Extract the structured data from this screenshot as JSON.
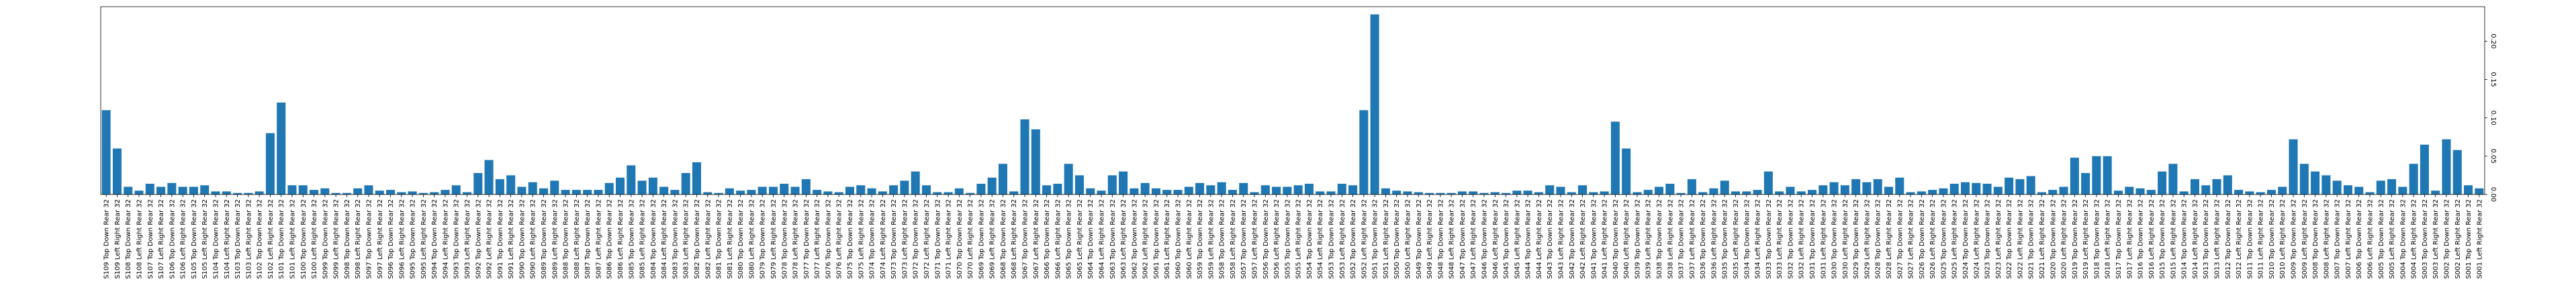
{
  "chart_data": {
    "type": "bar",
    "color": "#1f77b4",
    "categories": [
      "S109 Top Down Rear 32",
      "S109 Left Right Rear 32",
      "S108 Top Down Rear 32",
      "S108 Left Right Rear 32",
      "S107 Top Down Rear 32",
      "S107 Left Right Rear 32",
      "S106 Top Down Rear 32",
      "S106 Left Right Rear 32",
      "S105 Top Down Rear 32",
      "S105 Left Right Rear 32",
      "S104 Top Down Rear 32",
      "S104 Left Right Rear 32",
      "S103 Top Down Rear 32",
      "S103 Left Right Rear 32",
      "S102 Top Down Rear 32",
      "S102 Left Right Rear 32",
      "S101 Top Down Rear 32",
      "S101 Left Right Rear 32",
      "S100 Top Down Rear 32",
      "S100 Left Right Rear 32",
      "S099 Top Down Rear 32",
      "S099 Left Right Rear 32",
      "S098 Top Down Rear 32",
      "S098 Left Right Rear 32",
      "S097 Top Down Rear 32",
      "S097 Left Right Rear 32",
      "S096 Top Down Rear 32",
      "S096 Left Right Rear 32",
      "S095 Top Down Rear 32",
      "S095 Left Right Rear 32",
      "S094 Top Down Rear 32",
      "S094 Left Right Rear 32",
      "S093 Top Down Rear 32",
      "S093 Left Right Rear 32",
      "S092 Top Down Rear 32",
      "S092 Left Right Rear 32",
      "S091 Top Down Rear 32",
      "S091 Left Right Rear 32",
      "S090 Top Down Rear 32",
      "S090 Left Right Rear 32",
      "S089 Top Down Rear 32",
      "S089 Left Right Rear 32",
      "S088 Top Down Rear 32",
      "S088 Left Right Rear 32",
      "S087 Top Down Rear 32",
      "S087 Left Right Rear 32",
      "S086 Top Down Rear 32",
      "S086 Left Right Rear 32",
      "S085 Top Down Rear 32",
      "S085 Left Right Rear 32",
      "S084 Top Down Rear 32",
      "S084 Left Right Rear 32",
      "S083 Top Down Rear 32",
      "S083 Left Right Rear 32",
      "S082 Top Down Rear 32",
      "S082 Left Right Rear 32",
      "S081 Top Down Rear 32",
      "S081 Left Right Rear 32",
      "S080 Top Down Rear 32",
      "S080 Left Right Rear 32",
      "S079 Top Down Rear 32",
      "S079 Left Right Rear 32",
      "S078 Top Down Rear 32",
      "S078 Left Right Rear 32",
      "S077 Top Down Rear 32",
      "S077 Left Right Rear 32",
      "S076 Top Down Rear 32",
      "S076 Left Right Rear 32",
      "S075 Top Down Rear 32",
      "S075 Left Right Rear 32",
      "S074 Top Down Rear 32",
      "S074 Left Right Rear 32",
      "S073 Top Down Rear 32",
      "S073 Left Right Rear 32",
      "S072 Top Down Rear 32",
      "S072 Left Right Rear 32",
      "S071 Top Down Rear 32",
      "S071 Left Right Rear 32",
      "S070 Top Down Rear 32",
      "S070 Left Right Rear 32",
      "S069 Top Down Rear 32",
      "S069 Left Right Rear 32",
      "S068 Top Down Rear 32",
      "S068 Left Right Rear 32",
      "S067 Top Down Rear 32",
      "S067 Left Right Rear 32",
      "S066 Top Down Rear 32",
      "S066 Left Right Rear 32",
      "S065 Top Down Rear 32",
      "S065 Left Right Rear 32",
      "S064 Top Down Rear 32",
      "S064 Left Right Rear 32",
      "S063 Top Down Rear 32",
      "S063 Left Right Rear 32",
      "S062 Top Down Rear 32",
      "S062 Left Right Rear 32",
      "S061 Top Down Rear 32",
      "S061 Left Right Rear 32",
      "S060 Top Down Rear 32",
      "S060 Left Right Rear 32",
      "S059 Top Down Rear 32",
      "S059 Left Right Rear 32",
      "S058 Top Down Rear 32",
      "S058 Left Right Rear 32",
      "S057 Top Down Rear 32",
      "S057 Left Right Rear 32",
      "S056 Top Down Rear 32",
      "S056 Left Right Rear 32",
      "S055 Top Down Rear 32",
      "S055 Left Right Rear 32",
      "S054 Top Down Rear 32",
      "S054 Left Right Rear 32",
      "S053 Top Down Rear 32",
      "S053 Left Right Rear 32",
      "S052 Top Down Rear 32",
      "S052 Left Right Rear 32",
      "S051 Top Down Rear 32",
      "S051 Left Right Rear 32",
      "S050 Top Down Rear 32",
      "S050 Left Right Rear 32",
      "S049 Top Down Rear 32",
      "S049 Left Right Rear 32",
      "S048 Top Down Rear 32",
      "S048 Left Right Rear 32",
      "S047 Top Down Rear 32",
      "S047 Left Right Rear 32",
      "S046 Top Down Rear 32",
      "S046 Left Right Rear 32",
      "S045 Top Down Rear 32",
      "S045 Left Right Rear 32",
      "S044 Top Down Rear 32",
      "S044 Left Right Rear 32",
      "S043 Top Down Rear 32",
      "S043 Left Right Rear 32",
      "S042 Top Down Rear 32",
      "S042 Left Right Rear 32",
      "S041 Top Down Rear 32",
      "S041 Left Right Rear 32",
      "S040 Top Down Rear 32",
      "S040 Left Right Rear 32",
      "S039 Top Down Rear 32",
      "S039 Left Right Rear 32",
      "S038 Top Down Rear 32",
      "S038 Left Right Rear 32",
      "S037 Top Down Rear 32",
      "S037 Left Right Rear 32",
      "S036 Top Down Rear 32",
      "S036 Left Right Rear 32",
      "S035 Top Down Rear 32",
      "S035 Left Right Rear 32",
      "S034 Top Down Rear 32",
      "S034 Left Right Rear 32",
      "S033 Top Down Rear 32",
      "S033 Left Right Rear 32",
      "S032 Top Down Rear 32",
      "S032 Left Right Rear 32",
      "S031 Top Down Rear 32",
      "S031 Left Right Rear 32",
      "S030 Top Down Rear 32",
      "S030 Left Right Rear 32",
      "S029 Top Down Rear 32",
      "S029 Left Right Rear 32",
      "S028 Top Down Rear 32",
      "S028 Left Right Rear 32",
      "S027 Top Down Rear 32",
      "S027 Left Right Rear 32",
      "S026 Top Down Rear 32",
      "S026 Left Right Rear 32",
      "S025 Top Down Rear 32",
      "S025 Left Right Rear 32",
      "S024 Top Down Rear 32",
      "S024 Left Right Rear 32",
      "S023 Top Down Rear 32",
      "S023 Left Right Rear 32",
      "S022 Top Down Rear 32",
      "S022 Left Right Rear 32",
      "S021 Top Down Rear 32",
      "S021 Left Right Rear 32",
      "S020 Top Down Rear 32",
      "S020 Left Right Rear 32",
      "S019 Top Down Rear 32",
      "S019 Left Right Rear 32",
      "S018 Top Down Rear 32",
      "S018 Left Right Rear 32",
      "S017 Top Down Rear 32",
      "S017 Left Right Rear 32",
      "S016 Top Down Rear 32",
      "S016 Left Right Rear 32",
      "S015 Top Down Rear 32",
      "S015 Left Right Rear 32",
      "S014 Top Down Rear 32",
      "S014 Left Right Rear 32",
      "S013 Top Down Rear 32",
      "S013 Left Right Rear 32",
      "S012 Top Down Rear 32",
      "S012 Left Right Rear 32",
      "S011 Top Down Rear 32",
      "S011 Left Right Rear 32",
      "S010 Top Down Rear 32",
      "S010 Left Right Rear 32",
      "S009 Top Down Rear 32",
      "S009 Left Right Rear 32",
      "S008 Top Down Rear 32",
      "S008 Left Right Rear 32",
      "S007 Top Down Rear 32",
      "S007 Left Right Rear 32",
      "S006 Top Down Rear 32",
      "S006 Left Right Rear 32",
      "S005 Top Down Rear 32",
      "S005 Left Right Rear 32",
      "S004 Top Down Rear 32",
      "S004 Left Right Rear 32",
      "S003 Top Down Rear 32",
      "S003 Left Right Rear 32",
      "S002 Top Down Rear 32",
      "S002 Left Right Rear 32",
      "S001 Top Down Rear 32",
      "S001 Left Right Rear 32"
    ],
    "values": [
      0.11,
      0.06,
      0.01,
      0.005,
      0.014,
      0.01,
      0.015,
      0.01,
      0.01,
      0.012,
      0.004,
      0.004,
      0.002,
      0.002,
      0.004,
      0.08,
      0.12,
      0.012,
      0.012,
      0.006,
      0.008,
      0.002,
      0.002,
      0.008,
      0.012,
      0.005,
      0.006,
      0.003,
      0.004,
      0.002,
      0.003,
      0.006,
      0.012,
      0.003,
      0.028,
      0.045,
      0.02,
      0.025,
      0.01,
      0.016,
      0.008,
      0.018,
      0.006,
      0.006,
      0.006,
      0.006,
      0.015,
      0.022,
      0.038,
      0.018,
      0.022,
      0.01,
      0.006,
      0.028,
      0.042,
      0.003,
      0.002,
      0.008,
      0.005,
      0.006,
      0.01,
      0.01,
      0.014,
      0.01,
      0.02,
      0.006,
      0.004,
      0.003,
      0.01,
      0.012,
      0.008,
      0.004,
      0.012,
      0.018,
      0.03,
      0.012,
      0.003,
      0.003,
      0.008,
      0.002,
      0.014,
      0.022,
      0.04,
      0.004,
      0.098,
      0.085,
      0.012,
      0.014,
      0.04,
      0.025,
      0.008,
      0.005,
      0.025,
      0.03,
      0.008,
      0.015,
      0.008,
      0.006,
      0.006,
      0.01,
      0.015,
      0.012,
      0.016,
      0.006,
      0.015,
      0.003,
      0.012,
      0.01,
      0.01,
      0.012,
      0.014,
      0.004,
      0.004,
      0.014,
      0.012,
      0.11,
      0.235,
      0.008,
      0.005,
      0.004,
      0.003,
      0.002,
      0.002,
      0.002,
      0.004,
      0.004,
      0.002,
      0.003,
      0.002,
      0.005,
      0.005,
      0.003,
      0.012,
      0.01,
      0.003,
      0.012,
      0.003,
      0.004,
      0.095,
      0.06,
      0.003,
      0.006,
      0.01,
      0.014,
      0.002,
      0.02,
      0.003,
      0.008,
      0.018,
      0.004,
      0.004,
      0.006,
      0.03,
      0.004,
      0.01,
      0.004,
      0.006,
      0.012,
      0.016,
      0.012,
      0.02,
      0.016,
      0.02,
      0.01,
      0.022,
      0.003,
      0.004,
      0.006,
      0.008,
      0.014,
      0.016,
      0.015,
      0.014,
      0.01,
      0.022,
      0.02,
      0.024,
      0.003,
      0.006,
      0.01,
      0.048,
      0.028,
      0.05,
      0.05,
      0.005,
      0.01,
      0.008,
      0.006,
      0.03,
      0.04,
      0.004,
      0.02,
      0.012,
      0.02,
      0.025,
      0.006,
      0.004,
      0.003,
      0.006,
      0.01,
      0.072,
      0.04,
      0.03,
      0.025,
      0.018,
      0.012,
      0.01,
      0.003,
      0.018,
      0.02,
      0.01,
      0.04,
      0.065,
      0.005,
      0.072,
      0.058,
      0.012,
      0.008
    ],
    "ylim": [
      0,
      0.245
    ],
    "yticks": [
      {
        "value": 0,
        "label": "0.00"
      },
      {
        "value": 0.05,
        "label": "0.05"
      },
      {
        "value": 0.1,
        "label": "0.10"
      },
      {
        "value": 0.15,
        "label": "0.15"
      },
      {
        "value": 0.2,
        "label": "0.20"
      }
    ]
  }
}
